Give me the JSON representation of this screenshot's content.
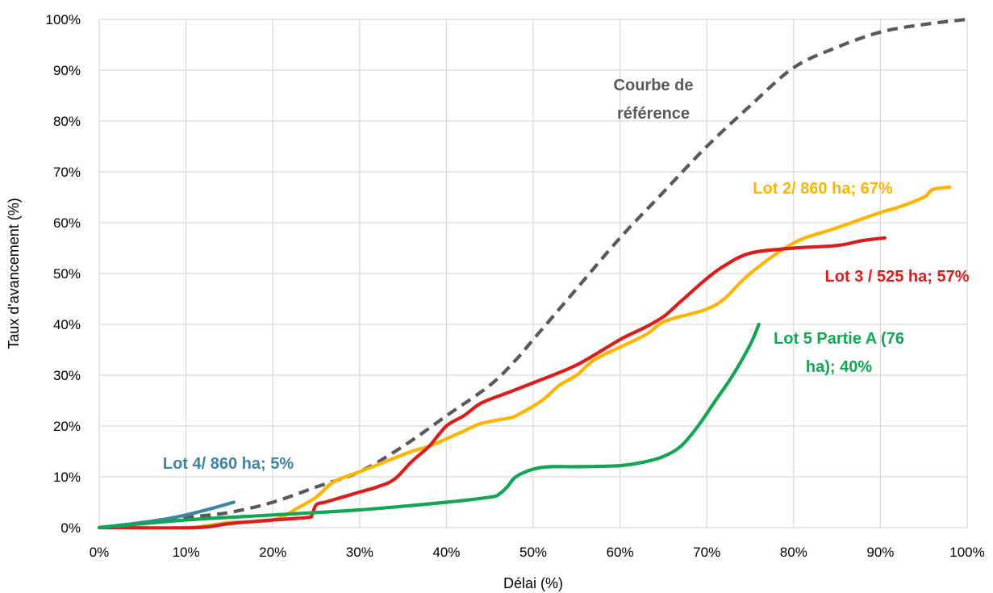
{
  "chart_data": {
    "type": "line",
    "xlabel": "Délai (%)",
    "ylabel": "Taux d'avancement (%)",
    "xlim": [
      0,
      100
    ],
    "ylim": [
      0,
      100
    ],
    "x_ticks": [
      "0%",
      "10%",
      "20%",
      "30%",
      "40%",
      "50%",
      "60%",
      "70%",
      "80%",
      "90%",
      "100%"
    ],
    "y_ticks": [
      "0%",
      "10%",
      "20%",
      "30%",
      "40%",
      "50%",
      "60%",
      "70%",
      "80%",
      "90%",
      "100%"
    ],
    "grid": true,
    "series": [
      {
        "key": "reference",
        "color": "#595959",
        "dashed": true,
        "points": [
          [
            0,
            0
          ],
          [
            10,
            2
          ],
          [
            15,
            3
          ],
          [
            20,
            5
          ],
          [
            25,
            8
          ],
          [
            30,
            11
          ],
          [
            35,
            16
          ],
          [
            40,
            22
          ],
          [
            45,
            28
          ],
          [
            48,
            33
          ],
          [
            50,
            37
          ],
          [
            55,
            47
          ],
          [
            60,
            57
          ],
          [
            65,
            66
          ],
          [
            70,
            75
          ],
          [
            75,
            83
          ],
          [
            80,
            90.5
          ],
          [
            85,
            94.5
          ],
          [
            90,
            97.5
          ],
          [
            95,
            99
          ],
          [
            100,
            100
          ]
        ]
      },
      {
        "key": "lot2",
        "color": "#FFB400",
        "dashed": false,
        "points": [
          [
            11,
            0
          ],
          [
            15,
            1
          ],
          [
            20,
            1.5
          ],
          [
            23,
            4
          ],
          [
            25,
            6
          ],
          [
            27,
            9
          ],
          [
            30,
            11
          ],
          [
            33,
            13
          ],
          [
            36,
            15
          ],
          [
            38,
            16
          ],
          [
            40,
            17.5
          ],
          [
            42,
            19
          ],
          [
            44,
            20.5
          ],
          [
            47,
            21.5
          ],
          [
            48,
            22
          ],
          [
            51,
            25
          ],
          [
            53,
            28
          ],
          [
            55,
            30
          ],
          [
            57,
            33
          ],
          [
            60,
            35.5
          ],
          [
            63,
            38
          ],
          [
            65,
            40.5
          ],
          [
            68,
            42
          ],
          [
            70,
            43
          ],
          [
            72,
            45
          ],
          [
            75,
            50
          ],
          [
            80,
            56
          ],
          [
            85,
            59
          ],
          [
            90,
            62
          ],
          [
            92,
            63
          ],
          [
            95,
            65
          ],
          [
            96,
            66.5
          ],
          [
            98,
            67
          ]
        ]
      },
      {
        "key": "lot3",
        "color": "#DD1C1C",
        "dashed": false,
        "points": [
          [
            0,
            0
          ],
          [
            11,
            0
          ],
          [
            15,
            0.8
          ],
          [
            20,
            1.5
          ],
          [
            24,
            2
          ],
          [
            24.5,
            2.5
          ],
          [
            25,
            4.5
          ],
          [
            26,
            5
          ],
          [
            28,
            6
          ],
          [
            30,
            7
          ],
          [
            32,
            8
          ],
          [
            34,
            9.5
          ],
          [
            36,
            13
          ],
          [
            38,
            16
          ],
          [
            40,
            20
          ],
          [
            42,
            22
          ],
          [
            44,
            24.5
          ],
          [
            47,
            26.5
          ],
          [
            50,
            28.5
          ],
          [
            55,
            32
          ],
          [
            60,
            37
          ],
          [
            63,
            39.5
          ],
          [
            65,
            41.5
          ],
          [
            67,
            44.5
          ],
          [
            70,
            49
          ],
          [
            72,
            51.5
          ],
          [
            75,
            54
          ],
          [
            80,
            55
          ],
          [
            85,
            55.5
          ],
          [
            88,
            56.5
          ],
          [
            90.5,
            57
          ]
        ]
      },
      {
        "key": "lot4",
        "color": "#3D85A5",
        "dashed": false,
        "points": [
          [
            0,
            0
          ],
          [
            4,
            0.8
          ],
          [
            7,
            1.5
          ],
          [
            10,
            2.5
          ],
          [
            13,
            3.8
          ],
          [
            15.5,
            5
          ]
        ]
      },
      {
        "key": "lot5",
        "color": "#12A654",
        "dashed": false,
        "points": [
          [
            0,
            0
          ],
          [
            10,
            1.5
          ],
          [
            20,
            2.5
          ],
          [
            30,
            3.5
          ],
          [
            40,
            5
          ],
          [
            45,
            6
          ],
          [
            46,
            6.5
          ],
          [
            47,
            8
          ],
          [
            48,
            10
          ],
          [
            50,
            11.5
          ],
          [
            52,
            12
          ],
          [
            55,
            12
          ],
          [
            60,
            12.2
          ],
          [
            63,
            13
          ],
          [
            65,
            14
          ],
          [
            67,
            16
          ],
          [
            69,
            20
          ],
          [
            71,
            25
          ],
          [
            73,
            30
          ],
          [
            75,
            36
          ],
          [
            76,
            40
          ]
        ]
      }
    ],
    "annotations": [
      {
        "key": "reference",
        "lines": [
          "Courbe de",
          "référence"
        ],
        "color": "#595959"
      },
      {
        "key": "lot2",
        "lines": [
          "Lot 2/ 860 ha; 67%"
        ],
        "color": "#FFB400"
      },
      {
        "key": "lot3",
        "lines": [
          "Lot 3 / 525 ha; 57%"
        ],
        "color": "#DD1C1C"
      },
      {
        "key": "lot5",
        "lines": [
          "Lot 5 Partie A (76",
          "ha); 40%"
        ],
        "color": "#12A654"
      },
      {
        "key": "lot4",
        "lines": [
          "Lot 4/ 860 ha; 5%"
        ],
        "color": "#3D85A5"
      }
    ]
  }
}
